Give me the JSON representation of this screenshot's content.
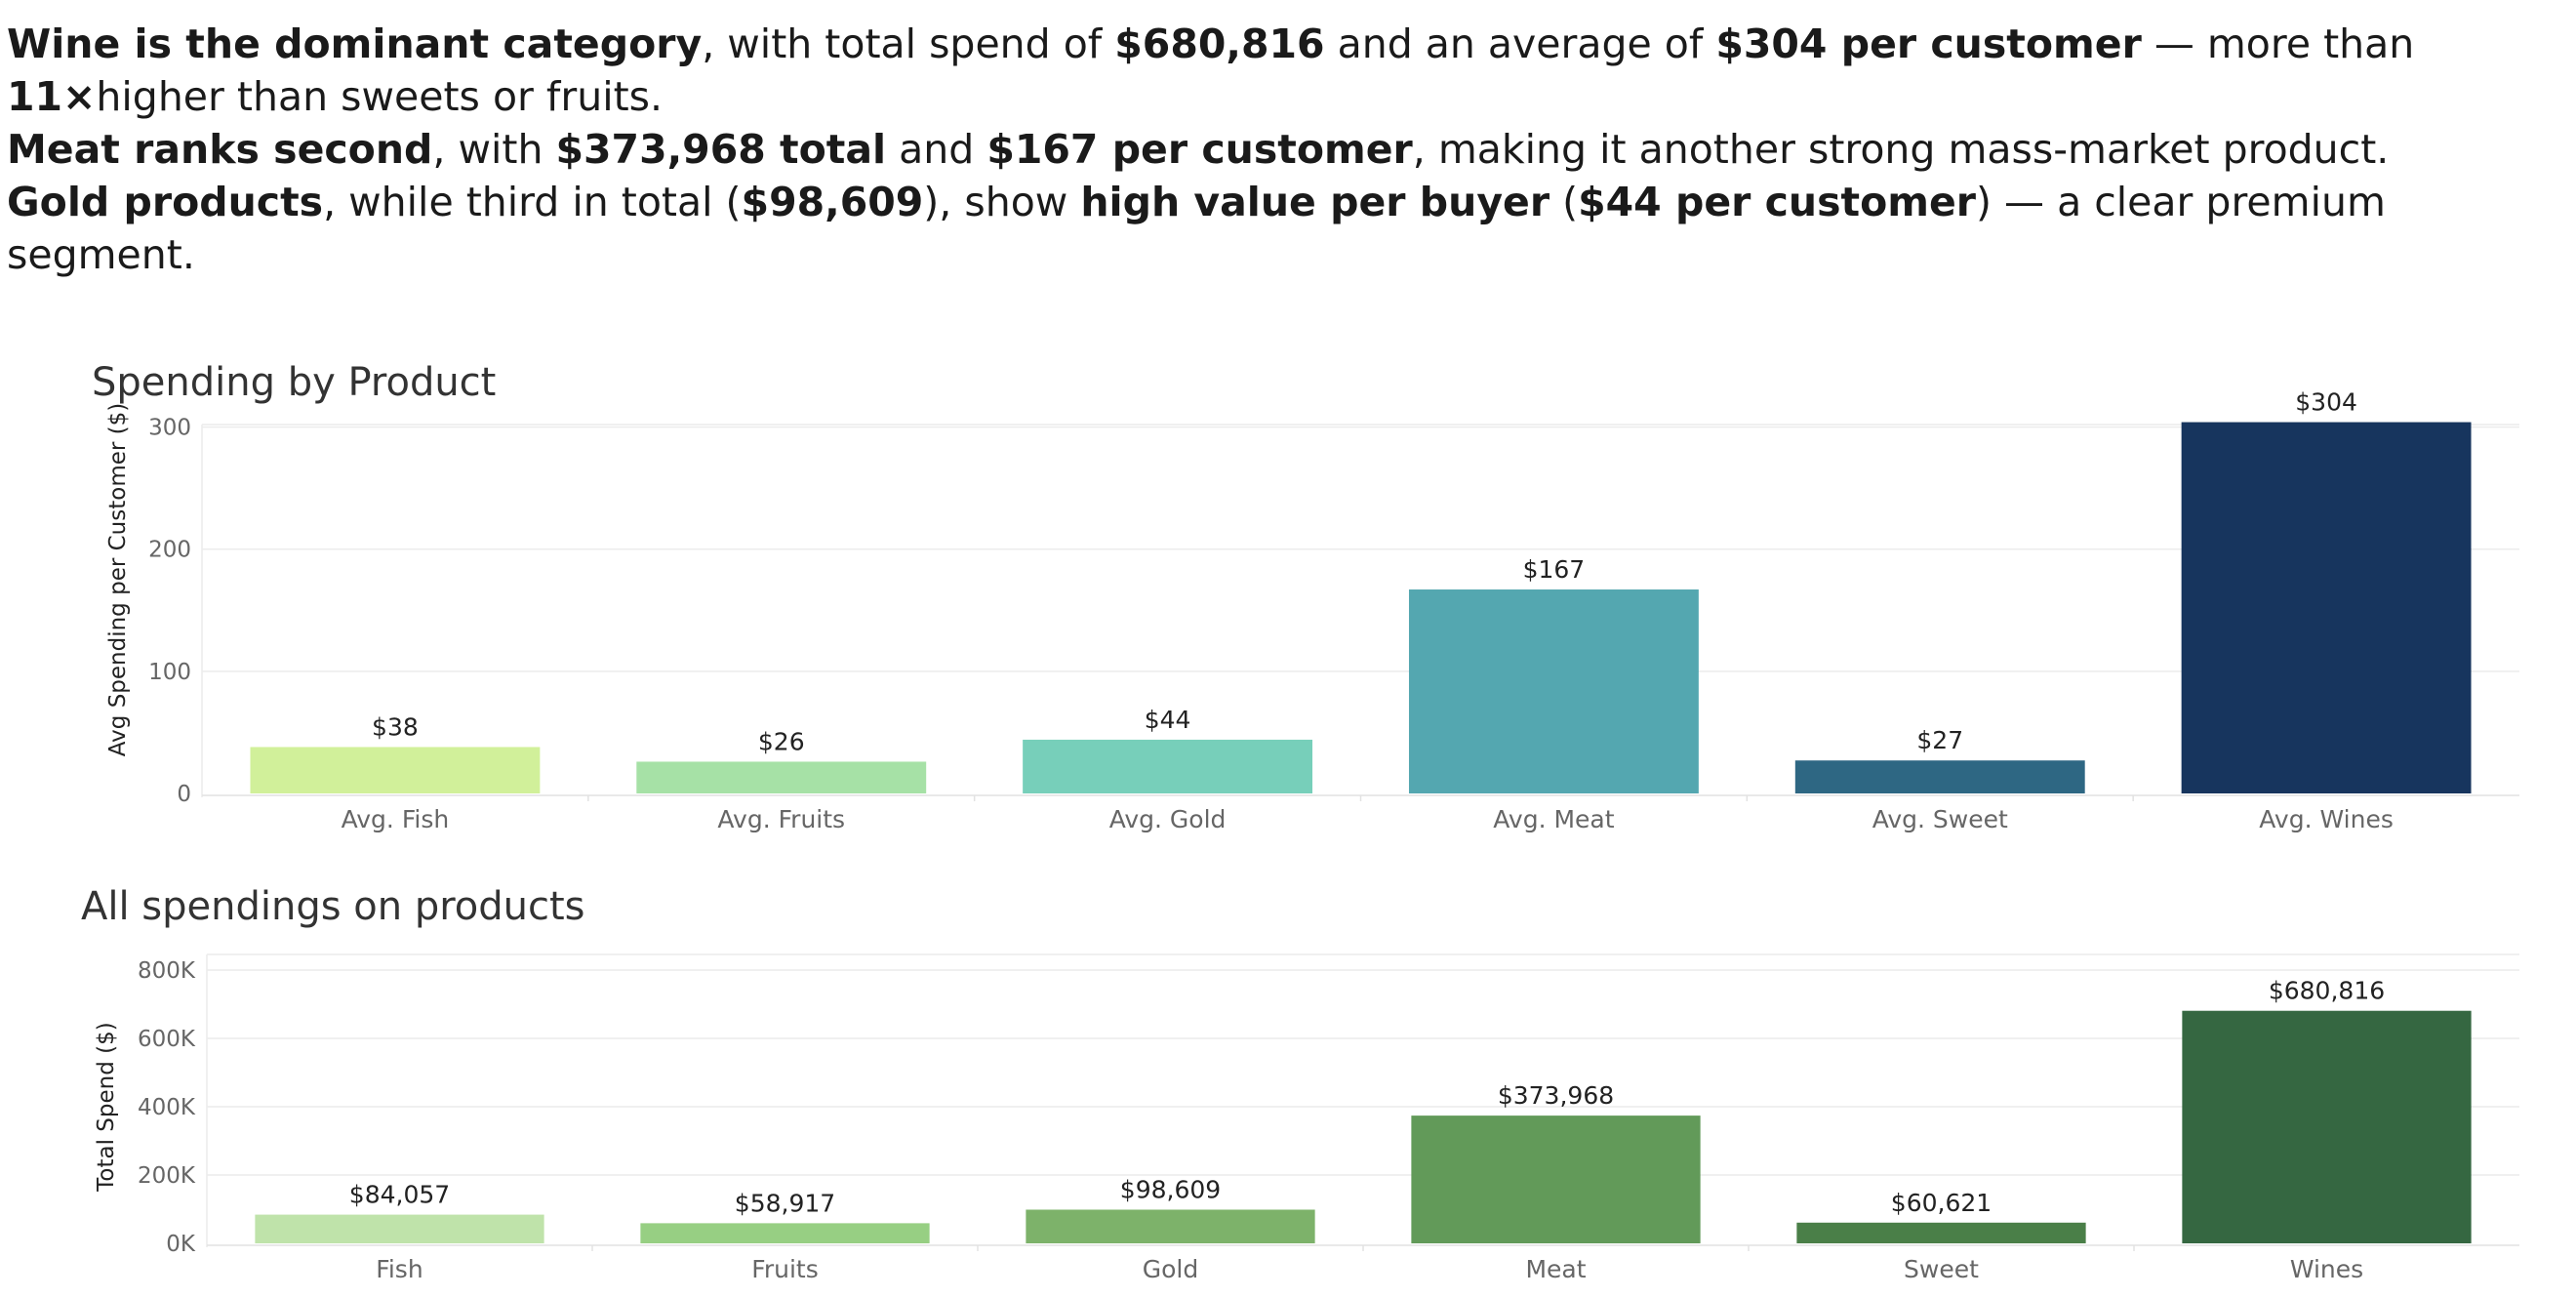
{
  "summary": {
    "line1": {
      "b1": "Wine is the dominant category",
      "t1": ", with total spend of ",
      "b2": "$680,816",
      "t2": " and an average of ",
      "b3": "$304 per customer",
      "t3": " — more than ",
      "b4": "11×",
      "t4": "higher than sweets or fruits."
    },
    "line2": {
      "b1": "Meat ranks second",
      "t1": ", with ",
      "b2": "$373,968 total",
      "t2": " and ",
      "b3": "$167 per customer",
      "t3": ", making it another strong mass-market product."
    },
    "line3": {
      "b1": "Gold products",
      "t1": ", while third in total (",
      "b2": "$98,609",
      "t2": "), show ",
      "b3": "high value per buyer",
      "t3": " (",
      "b4": "$44 per customer",
      "t4": ") — a clear premium segment."
    }
  },
  "chart_data": [
    {
      "type": "bar",
      "title": "Spending by Product",
      "ylabel": "Avg Spending per Customer ($)",
      "xlabel": "",
      "categories": [
        "Avg. Fish",
        "Avg. Fruits",
        "Avg. Gold",
        "Avg. Meat",
        "Avg. Sweet",
        "Avg. Wines"
      ],
      "values": [
        38,
        26,
        44,
        167,
        27,
        304
      ],
      "data_labels": [
        "$38",
        "$26",
        "$44",
        "$167",
        "$27",
        "$304"
      ],
      "colors": [
        "#d1f09a",
        "#a6e1a6",
        "#77cfba",
        "#54a7b0",
        "#2e6783",
        "#17355e"
      ],
      "ylim": [
        0,
        350
      ],
      "yticks": [
        0,
        100,
        200,
        300
      ],
      "ytick_labels": [
        "0",
        "100",
        "200",
        "300"
      ],
      "grid": true
    },
    {
      "type": "bar",
      "title": "All spendings on products",
      "ylabel": "Total Spend ($)",
      "xlabel": "",
      "categories": [
        "Fish",
        "Fruits",
        "Gold",
        "Meat",
        "Sweet",
        "Wines"
      ],
      "values": [
        84057,
        58917,
        98609,
        373968,
        60621,
        680816
      ],
      "data_labels": [
        "$84,057",
        "$58,917",
        "$98,609",
        "$373,968",
        "$60,621",
        "$680,816"
      ],
      "colors": [
        "#bfe3aa",
        "#97cf83",
        "#7db26a",
        "#629a59",
        "#4a7f48",
        "#356741"
      ],
      "ylim": [
        0,
        800000
      ],
      "yticks": [
        0,
        200000,
        400000,
        600000,
        800000
      ],
      "ytick_labels": [
        "0K",
        "200K",
        "400K",
        "600K",
        "800K"
      ],
      "grid": true
    }
  ]
}
